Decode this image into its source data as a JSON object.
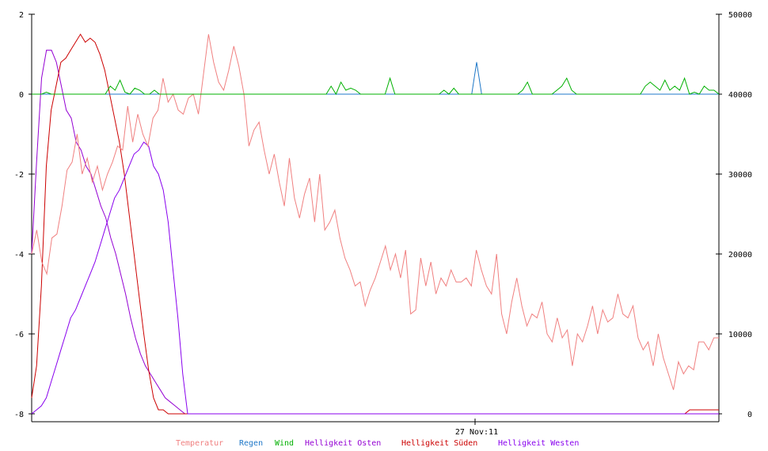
{
  "chart_data": {
    "type": "line",
    "y_left": {
      "ticks": [
        2,
        0,
        -2,
        -4,
        -6,
        -8
      ],
      "range": [
        -8,
        2
      ]
    },
    "y_right": {
      "ticks": [
        50000,
        40000,
        30000,
        20000,
        10000,
        0
      ],
      "range": [
        0,
        50000
      ]
    },
    "x_tick_label": "27 Nov:11",
    "legend_position": "bottom-center",
    "series": [
      {
        "name": "Temperatur",
        "axis": "left",
        "color": "#f08080",
        "values": [
          -4.0,
          -3.4,
          -4.2,
          -4.5,
          -3.6,
          -3.5,
          -2.8,
          -1.9,
          -1.7,
          -1.0,
          -2.0,
          -1.6,
          -2.2,
          -1.8,
          -2.4,
          -2.0,
          -1.7,
          -1.3,
          -1.4,
          -0.3,
          -1.2,
          -0.5,
          -1.0,
          -1.3,
          -0.6,
          -0.4,
          0.4,
          -0.2,
          0.0,
          -0.4,
          -0.5,
          -0.1,
          0.0,
          -0.5,
          0.5,
          1.5,
          0.8,
          0.3,
          0.1,
          0.6,
          1.2,
          0.7,
          0.0,
          -1.3,
          -0.9,
          -0.7,
          -1.4,
          -2.0,
          -1.5,
          -2.2,
          -2.8,
          -1.6,
          -2.6,
          -3.1,
          -2.5,
          -2.1,
          -3.2,
          -2.0,
          -3.4,
          -3.2,
          -2.9,
          -3.6,
          -4.1,
          -4.4,
          -4.8,
          -4.7,
          -5.3,
          -4.9,
          -4.6,
          -4.2,
          -3.8,
          -4.4,
          -4.0,
          -4.6,
          -3.9,
          -5.5,
          -5.4,
          -4.1,
          -4.8,
          -4.2,
          -5.0,
          -4.6,
          -4.8,
          -4.4,
          -4.7,
          -4.7,
          -4.6,
          -4.8,
          -3.9,
          -4.4,
          -4.8,
          -5.0,
          -4.0,
          -5.5,
          -6.0,
          -5.2,
          -4.6,
          -5.3,
          -5.8,
          -5.5,
          -5.6,
          -5.2,
          -6.0,
          -6.2,
          -5.6,
          -6.1,
          -5.9,
          -6.8,
          -6.0,
          -6.2,
          -5.8,
          -5.3,
          -6.0,
          -5.4,
          -5.7,
          -5.6,
          -5.0,
          -5.5,
          -5.6,
          -5.3,
          -6.1,
          -6.4,
          -6.2,
          -6.8,
          -6.0,
          -6.6,
          -7.0,
          -7.4,
          -6.7,
          -7.0,
          -6.8,
          -6.9,
          -6.2,
          -6.2,
          -6.4,
          -6.1,
          -6.1
        ]
      },
      {
        "name": "Regen",
        "axis": "left",
        "color": "#1f78c8",
        "values": [
          0,
          0,
          0,
          0,
          0,
          0,
          0,
          0,
          0,
          0,
          0,
          0,
          0,
          0,
          0,
          0,
          0,
          0,
          0,
          0,
          0,
          0,
          0,
          0,
          0,
          0,
          0,
          0,
          0,
          0,
          0,
          0,
          0,
          0,
          0,
          0,
          0,
          0,
          0,
          0,
          0,
          0,
          0,
          0,
          0,
          0,
          0,
          0,
          0,
          0,
          0,
          0,
          0,
          0,
          0,
          0,
          0,
          0,
          0,
          0,
          0,
          0,
          0,
          0,
          0,
          0,
          0,
          0,
          0,
          0,
          0,
          0,
          0,
          0,
          0,
          0,
          0,
          0,
          0,
          0,
          0,
          0,
          0,
          0,
          0,
          0,
          0,
          0,
          0,
          0,
          0.8,
          0,
          0,
          0,
          0,
          0,
          0,
          0,
          0,
          0,
          0,
          0,
          0,
          0,
          0,
          0,
          0,
          0,
          0,
          0,
          0,
          0,
          0,
          0,
          0,
          0,
          0,
          0,
          0,
          0,
          0,
          0,
          0,
          0,
          0,
          0,
          0,
          0,
          0,
          0,
          0,
          0,
          0,
          0,
          0,
          0,
          0,
          0,
          0,
          0
        ]
      },
      {
        "name": "Wind",
        "axis": "left",
        "color": "#00b000",
        "values": [
          0,
          0,
          0,
          0.05,
          0,
          0,
          0,
          0,
          0,
          0,
          0,
          0,
          0,
          0,
          0,
          0,
          0.2,
          0.1,
          0.35,
          0.05,
          0,
          0.15,
          0.1,
          0,
          0,
          0.1,
          0,
          0,
          0,
          0,
          0,
          0,
          0,
          0,
          0,
          0,
          0,
          0,
          0,
          0,
          0,
          0,
          0,
          0,
          0,
          0,
          0,
          0,
          0,
          0,
          0,
          0,
          0,
          0,
          0,
          0,
          0,
          0,
          0,
          0,
          0,
          0.2,
          0,
          0.3,
          0.1,
          0.15,
          0.1,
          0,
          0,
          0,
          0,
          0,
          0,
          0.4,
          0,
          0,
          0,
          0,
          0,
          0,
          0,
          0,
          0,
          0,
          0.1,
          0,
          0.15,
          0,
          0,
          0,
          0,
          0,
          0,
          0,
          0,
          0,
          0,
          0,
          0,
          0,
          0.1,
          0.3,
          0,
          0,
          0,
          0,
          0,
          0.1,
          0.2,
          0.4,
          0.1,
          0,
          0,
          0,
          0,
          0,
          0,
          0,
          0,
          0,
          0,
          0,
          0,
          0,
          0,
          0.2,
          0.3,
          0.2,
          0.1,
          0.35,
          0.1,
          0.2,
          0.1,
          0.4,
          0,
          0.05,
          0,
          0.2,
          0.1,
          0.1,
          0
        ]
      },
      {
        "name": "Helligkeit Osten",
        "axis": "right",
        "color": "#9400d3",
        "values": [
          20000,
          31500,
          42000,
          45500,
          45500,
          44000,
          41000,
          38000,
          37000,
          34000,
          33000,
          31000,
          30000,
          28000,
          26000,
          24500,
          22000,
          20000,
          17500,
          15000,
          12000,
          9500,
          7500,
          6000,
          5000,
          4000,
          3000,
          2000,
          1500,
          1000,
          500,
          0,
          0,
          0,
          0,
          0,
          0,
          0,
          0,
          0,
          0,
          0,
          0,
          0,
          0,
          0,
          0,
          0,
          0,
          0,
          0,
          0,
          0,
          0,
          0,
          0,
          0,
          0,
          0,
          0,
          0,
          0,
          0,
          0,
          0,
          0,
          0,
          0,
          0,
          0,
          0,
          0,
          0,
          0,
          0,
          0,
          0,
          0,
          0,
          0,
          0,
          0,
          0,
          0,
          0,
          0,
          0,
          0,
          0,
          0,
          0,
          0,
          0,
          0,
          0,
          0,
          0,
          0,
          0,
          0,
          0,
          0,
          0,
          0,
          0,
          0,
          0,
          0,
          0,
          0,
          0,
          0,
          0,
          0,
          0,
          0,
          0,
          0,
          0,
          0,
          0,
          0,
          0,
          0,
          0,
          0,
          0,
          0,
          0,
          0,
          0,
          0,
          0,
          0,
          0,
          0,
          0,
          0,
          0,
          0
        ]
      },
      {
        "name": "Helligkeit Süden",
        "axis": "right",
        "color": "#cc0000",
        "values": [
          2000,
          6000,
          16000,
          31000,
          38000,
          41000,
          44000,
          44500,
          45500,
          46500,
          47500,
          46500,
          47000,
          46500,
          45000,
          43000,
          40000,
          37000,
          34000,
          30000,
          25000,
          20000,
          15000,
          10000,
          5500,
          2000,
          500,
          500,
          0,
          0,
          0,
          0,
          0,
          0,
          0,
          0,
          0,
          0,
          0,
          0,
          0,
          0,
          0,
          0,
          0,
          0,
          0,
          0,
          0,
          0,
          0,
          0,
          0,
          0,
          0,
          0,
          0,
          0,
          0,
          0,
          0,
          0,
          0,
          0,
          0,
          0,
          0,
          0,
          0,
          0,
          0,
          0,
          0,
          0,
          0,
          0,
          0,
          0,
          0,
          0,
          0,
          0,
          0,
          0,
          0,
          0,
          0,
          0,
          0,
          0,
          0,
          0,
          0,
          0,
          0,
          0,
          0,
          0,
          0,
          0,
          0,
          0,
          0,
          0,
          0,
          0,
          0,
          0,
          0,
          0,
          0,
          0,
          0,
          0,
          0,
          0,
          0,
          0,
          0,
          0,
          0,
          0,
          0,
          0,
          0,
          0,
          0,
          0,
          0,
          0,
          0,
          0,
          0,
          0,
          0,
          500,
          500,
          500,
          500,
          500,
          500,
          500
        ]
      },
      {
        "name": "Helligkeit Westen",
        "axis": "right",
        "color": "#8800ee",
        "values": [
          0,
          500,
          1000,
          2000,
          4000,
          6000,
          8000,
          10000,
          12000,
          13000,
          14500,
          16000,
          17500,
          19000,
          21000,
          23000,
          25000,
          27000,
          28000,
          29500,
          31000,
          32500,
          33000,
          34000,
          33500,
          31000,
          30000,
          28000,
          24000,
          18000,
          12000,
          5000,
          0,
          0,
          0,
          0,
          0,
          0,
          0,
          0,
          0,
          0,
          0,
          0,
          0,
          0,
          0,
          0,
          0,
          0,
          0,
          0,
          0,
          0,
          0,
          0,
          0,
          0,
          0,
          0,
          0,
          0,
          0,
          0,
          0,
          0,
          0,
          0,
          0,
          0,
          0,
          0,
          0,
          0,
          0,
          0,
          0,
          0,
          0,
          0,
          0,
          0,
          0,
          0,
          0,
          0,
          0,
          0,
          0,
          0,
          0,
          0,
          0,
          0,
          0,
          0,
          0,
          0,
          0,
          0,
          0,
          0,
          0,
          0,
          0,
          0,
          0,
          0,
          0,
          0,
          0,
          0,
          0,
          0,
          0,
          0,
          0,
          0,
          0,
          0,
          0,
          0,
          0,
          0,
          0,
          0,
          0,
          0,
          0,
          0,
          0,
          0,
          0,
          0,
          0,
          0,
          0,
          0,
          0,
          0,
          0,
          0
        ]
      }
    ]
  }
}
